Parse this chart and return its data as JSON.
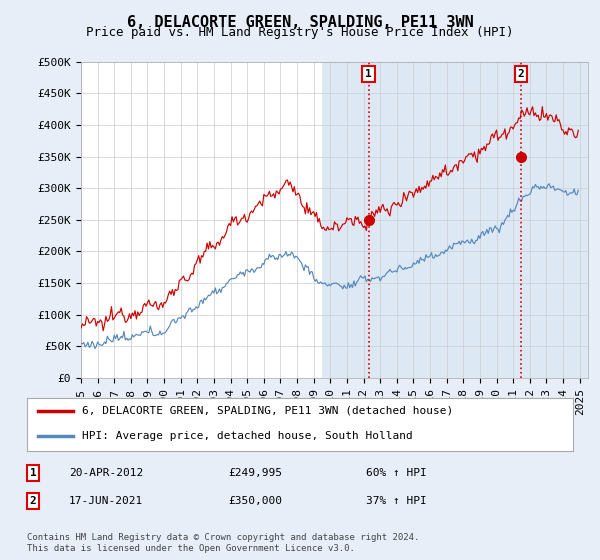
{
  "title": "6, DELACORTE GREEN, SPALDING, PE11 3WN",
  "subtitle": "Price paid vs. HM Land Registry's House Price Index (HPI)",
  "ylabel_ticks": [
    "£0",
    "£50K",
    "£100K",
    "£150K",
    "£200K",
    "£250K",
    "£300K",
    "£350K",
    "£400K",
    "£450K",
    "£500K"
  ],
  "ytick_values": [
    0,
    50000,
    100000,
    150000,
    200000,
    250000,
    300000,
    350000,
    400000,
    450000,
    500000
  ],
  "ylim": [
    0,
    500000
  ],
  "xlim_start": 1995.0,
  "xlim_end": 2025.5,
  "red_line_color": "#cc0000",
  "blue_line_color": "#5588bb",
  "marker1_x": 2012.3,
  "marker1_y": 249995,
  "marker2_x": 2021.46,
  "marker2_y": 350000,
  "vline1_x": 2012.3,
  "vline2_x": 2021.46,
  "vline_color": "#dd0000",
  "vline_style": ":",
  "legend_label_red": "6, DELACORTE GREEN, SPALDING, PE11 3WN (detached house)",
  "legend_label_blue": "HPI: Average price, detached house, South Holland",
  "note1_label": "1",
  "note1_date": "20-APR-2012",
  "note1_price": "£249,995",
  "note1_hpi": "60% ↑ HPI",
  "note2_label": "2",
  "note2_date": "17-JUN-2021",
  "note2_price": "£350,000",
  "note2_hpi": "37% ↑ HPI",
  "footer": "Contains HM Land Registry data © Crown copyright and database right 2024.\nThis data is licensed under the Open Government Licence v3.0.",
  "background_color": "#e8eef8",
  "plot_bg_color": "#ffffff",
  "shade_bg_color": "#dde8f5",
  "grid_color": "#cccccc",
  "title_fontsize": 11,
  "subtitle_fontsize": 9,
  "tick_fontsize": 8,
  "shade_start": 2009.5,
  "shade_end": 2025.5
}
